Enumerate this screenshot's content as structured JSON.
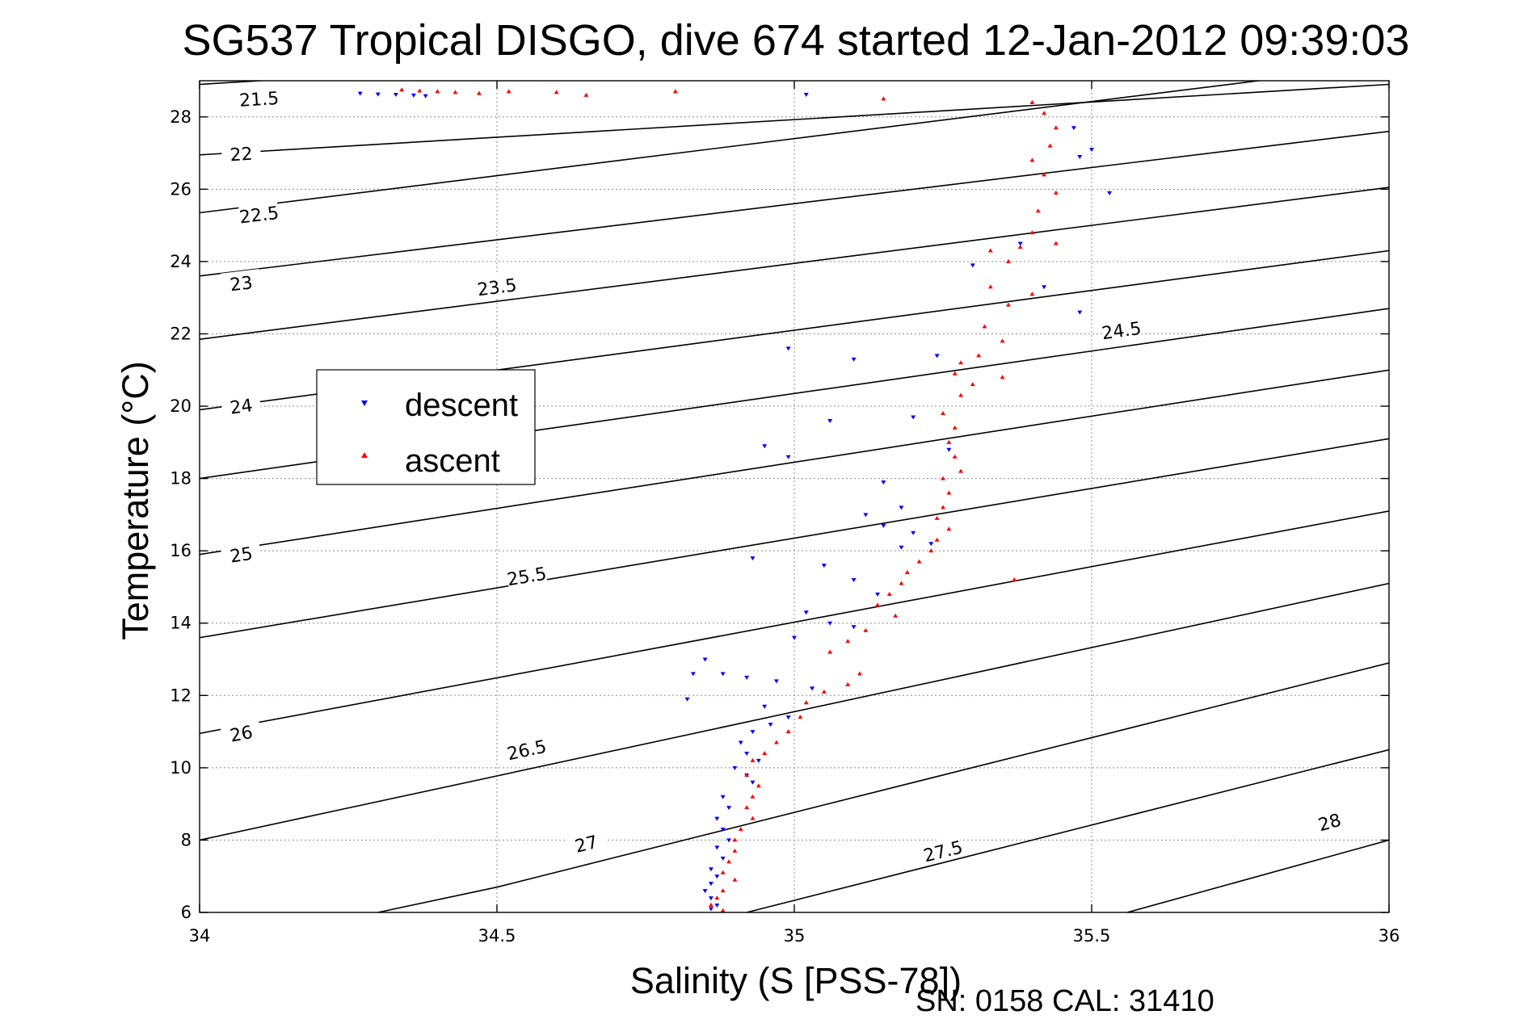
{
  "title": "SG537 Tropical DISGO, dive 674 started 12-Jan-2012 09:39:03",
  "footer": "SN: 0158  CAL: 31410",
  "chart_data": {
    "type": "scatter",
    "title": "SG537 Tropical DISGO, dive 674 started 12-Jan-2012 09:39:03",
    "xlabel": "Salinity (S [PSS-78])",
    "ylabel": "Temperature (°C)",
    "xlim": [
      34,
      36
    ],
    "ylim": [
      6,
      29
    ],
    "xticks": [
      34,
      34.5,
      35,
      35.5,
      36
    ],
    "xtick_labels": [
      "34",
      "34.5",
      "35",
      "35.5",
      "36"
    ],
    "yticks": [
      6,
      8,
      10,
      12,
      14,
      16,
      18,
      20,
      22,
      24,
      26,
      28
    ],
    "ytick_labels": [
      "6",
      "8",
      "10",
      "12",
      "14",
      "16",
      "18",
      "20",
      "22",
      "24",
      "26",
      "28"
    ],
    "grid": true,
    "legend_position": "upper-left",
    "contours": [
      {
        "label": "21.5",
        "points": [
          [
            34.0,
            28.9
          ],
          [
            34.5,
            29.4
          ],
          [
            36.0,
            30.9
          ]
        ],
        "label_at": [
          34.1,
          28.5
        ]
      },
      {
        "label": "22",
        "points": [
          [
            34.0,
            26.95
          ],
          [
            36.0,
            28.9
          ]
        ],
        "label_at": [
          34.07,
          26.98
        ]
      },
      {
        "label": "22.5",
        "points": [
          [
            34.0,
            25.35
          ],
          [
            36.0,
            29.45
          ]
        ],
        "label_at": [
          34.1,
          25.3
        ]
      },
      {
        "label": "23",
        "points": [
          [
            34.0,
            23.6
          ],
          [
            36.0,
            27.6
          ]
        ],
        "label_at": [
          34.07,
          23.4
        ]
      },
      {
        "label": "23.5",
        "points": [
          [
            34.0,
            21.85
          ],
          [
            36.0,
            26.05
          ]
        ],
        "label_at": [
          34.5,
          23.3
        ]
      },
      {
        "label": "24",
        "points": [
          [
            34.0,
            19.9
          ],
          [
            36.0,
            24.3
          ]
        ],
        "label_at": [
          34.07,
          20.0
        ]
      },
      {
        "label": "24.5",
        "points": [
          [
            34.0,
            18.0
          ],
          [
            36.0,
            22.7
          ]
        ],
        "label_at": [
          35.55,
          22.1
        ]
      },
      {
        "label": "25",
        "points": [
          [
            34.0,
            15.9
          ],
          [
            36.0,
            21.0
          ]
        ],
        "label_at": [
          34.07,
          15.9
        ]
      },
      {
        "label": "25.5",
        "points": [
          [
            34.0,
            13.6
          ],
          [
            36.0,
            19.1
          ]
        ],
        "label_at": [
          34.55,
          15.3
        ]
      },
      {
        "label": "26",
        "points": [
          [
            34.0,
            10.95
          ],
          [
            36.0,
            17.1
          ]
        ],
        "label_at": [
          34.07,
          10.95
        ]
      },
      {
        "label": "26.5",
        "points": [
          [
            34.0,
            8.0
          ],
          [
            36.0,
            15.1
          ]
        ],
        "label_at": [
          34.55,
          10.5
        ]
      },
      {
        "label": "27",
        "points": [
          [
            34.3,
            6.0
          ],
          [
            34.5,
            6.7
          ],
          [
            36.0,
            12.9
          ]
        ],
        "label_at": [
          34.65,
          7.9
        ]
      },
      {
        "label": "27.5",
        "points": [
          [
            34.92,
            6.0
          ],
          [
            36.0,
            10.5
          ]
        ],
        "label_at": [
          35.25,
          7.7
        ]
      },
      {
        "label": "28",
        "points": [
          [
            35.56,
            6.0
          ],
          [
            36.0,
            8.0
          ]
        ],
        "label_at": [
          35.9,
          8.5
        ]
      }
    ],
    "series": [
      {
        "name": "descent",
        "color": "#0000ff",
        "marker": "triangle-down",
        "points": [
          [
            34.27,
            28.65
          ],
          [
            34.3,
            28.63
          ],
          [
            34.33,
            28.62
          ],
          [
            34.36,
            28.6
          ],
          [
            34.38,
            28.58
          ],
          [
            35.02,
            28.62
          ],
          [
            35.47,
            27.7
          ],
          [
            35.5,
            27.1
          ],
          [
            35.48,
            26.9
          ],
          [
            35.53,
            25.9
          ],
          [
            35.38,
            24.5
          ],
          [
            35.42,
            23.3
          ],
          [
            35.48,
            22.6
          ],
          [
            34.99,
            21.6
          ],
          [
            35.1,
            21.3
          ],
          [
            35.24,
            21.4
          ],
          [
            35.06,
            19.6
          ],
          [
            35.2,
            19.7
          ],
          [
            34.95,
            18.9
          ],
          [
            34.99,
            18.6
          ],
          [
            35.15,
            17.9
          ],
          [
            35.18,
            17.2
          ],
          [
            35.12,
            17.0
          ],
          [
            35.15,
            16.7
          ],
          [
            35.2,
            16.5
          ],
          [
            35.18,
            16.1
          ],
          [
            35.23,
            16.2
          ],
          [
            34.93,
            15.8
          ],
          [
            35.05,
            15.6
          ],
          [
            35.1,
            15.2
          ],
          [
            35.14,
            14.8
          ],
          [
            35.02,
            14.3
          ],
          [
            35.06,
            14.0
          ],
          [
            35.1,
            13.9
          ],
          [
            35.0,
            13.6
          ],
          [
            34.85,
            13.0
          ],
          [
            34.88,
            12.6
          ],
          [
            34.92,
            12.5
          ],
          [
            34.97,
            12.4
          ],
          [
            35.03,
            12.2
          ],
          [
            34.82,
            11.9
          ],
          [
            34.95,
            11.7
          ],
          [
            34.99,
            11.4
          ],
          [
            34.96,
            11.2
          ],
          [
            34.93,
            11.0
          ],
          [
            34.91,
            10.7
          ],
          [
            34.92,
            10.4
          ],
          [
            34.94,
            10.2
          ],
          [
            34.9,
            10.0
          ],
          [
            34.92,
            9.8
          ],
          [
            34.93,
            9.6
          ],
          [
            34.88,
            9.2
          ],
          [
            34.89,
            8.9
          ],
          [
            34.87,
            8.6
          ],
          [
            34.88,
            8.3
          ],
          [
            34.89,
            8.0
          ],
          [
            34.87,
            7.8
          ],
          [
            34.88,
            7.5
          ],
          [
            34.86,
            7.2
          ],
          [
            34.87,
            7.0
          ],
          [
            34.86,
            6.8
          ],
          [
            34.85,
            6.6
          ],
          [
            34.86,
            6.4
          ],
          [
            34.87,
            6.2
          ],
          [
            34.86,
            6.1
          ],
          [
            34.83,
            12.6
          ],
          [
            35.3,
            23.9
          ],
          [
            35.26,
            18.8
          ]
        ]
      },
      {
        "name": "ascent",
        "color": "#ff0000",
        "marker": "triangle-up",
        "points": [
          [
            34.34,
            28.75
          ],
          [
            34.37,
            28.72
          ],
          [
            34.4,
            28.7
          ],
          [
            34.43,
            28.68
          ],
          [
            34.47,
            28.65
          ],
          [
            34.52,
            28.7
          ],
          [
            34.6,
            28.68
          ],
          [
            34.65,
            28.6
          ],
          [
            34.8,
            28.7
          ],
          [
            35.15,
            28.5
          ],
          [
            35.4,
            28.4
          ],
          [
            35.42,
            28.1
          ],
          [
            35.44,
            27.7
          ],
          [
            35.43,
            27.2
          ],
          [
            35.4,
            26.8
          ],
          [
            35.42,
            26.4
          ],
          [
            35.44,
            25.9
          ],
          [
            35.41,
            25.4
          ],
          [
            35.4,
            24.8
          ],
          [
            35.44,
            24.5
          ],
          [
            35.38,
            24.4
          ],
          [
            35.33,
            24.3
          ],
          [
            35.36,
            24.0
          ],
          [
            35.33,
            23.3
          ],
          [
            35.4,
            23.1
          ],
          [
            35.36,
            22.8
          ],
          [
            35.32,
            22.2
          ],
          [
            35.35,
            21.8
          ],
          [
            35.31,
            21.4
          ],
          [
            35.28,
            21.2
          ],
          [
            35.27,
            20.9
          ],
          [
            35.3,
            20.6
          ],
          [
            35.28,
            20.3
          ],
          [
            35.25,
            19.8
          ],
          [
            35.27,
            19.4
          ],
          [
            35.26,
            19.0
          ],
          [
            35.27,
            18.6
          ],
          [
            35.28,
            18.2
          ],
          [
            35.25,
            18.0
          ],
          [
            35.26,
            17.6
          ],
          [
            35.25,
            17.2
          ],
          [
            35.24,
            16.9
          ],
          [
            35.26,
            16.6
          ],
          [
            35.24,
            16.3
          ],
          [
            35.23,
            16.0
          ],
          [
            35.21,
            15.7
          ],
          [
            35.19,
            15.4
          ],
          [
            35.18,
            15.1
          ],
          [
            35.16,
            14.8
          ],
          [
            35.14,
            14.5
          ],
          [
            35.17,
            14.2
          ],
          [
            35.12,
            13.8
          ],
          [
            35.09,
            13.5
          ],
          [
            35.06,
            13.2
          ],
          [
            35.11,
            12.6
          ],
          [
            35.09,
            12.3
          ],
          [
            35.05,
            12.1
          ],
          [
            35.02,
            11.8
          ],
          [
            35.01,
            11.4
          ],
          [
            34.99,
            11.0
          ],
          [
            34.97,
            10.7
          ],
          [
            34.95,
            10.4
          ],
          [
            34.93,
            10.2
          ],
          [
            34.92,
            9.8
          ],
          [
            34.94,
            9.5
          ],
          [
            34.93,
            9.2
          ],
          [
            34.92,
            8.9
          ],
          [
            34.93,
            8.6
          ],
          [
            34.91,
            8.3
          ],
          [
            34.9,
            8.0
          ],
          [
            34.9,
            7.7
          ],
          [
            34.89,
            7.4
          ],
          [
            34.88,
            7.1
          ],
          [
            34.9,
            6.9
          ],
          [
            34.88,
            6.6
          ],
          [
            34.87,
            6.4
          ],
          [
            34.86,
            6.2
          ],
          [
            34.88,
            6.05
          ],
          [
            35.37,
            15.2
          ],
          [
            35.35,
            20.8
          ]
        ]
      }
    ]
  }
}
